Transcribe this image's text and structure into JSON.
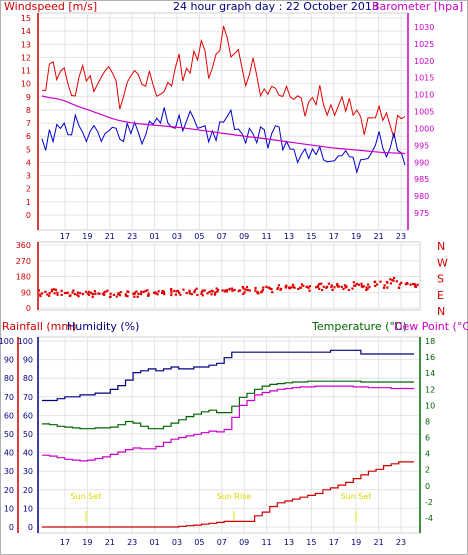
{
  "chart_data": [
    {
      "type": "line",
      "title": "24 hour graph day : 22 October 2013",
      "ylabel": "Windspeed [m/s]",
      "y2label": "Barometer [hpa]",
      "ylim": [
        0,
        15
      ],
      "y2lim": [
        975,
        1030
      ],
      "yticks": [
        0,
        1,
        2,
        3,
        4,
        5,
        6,
        7,
        8,
        9,
        10,
        11,
        12,
        13,
        14,
        15
      ],
      "y2ticks": [
        975,
        980,
        985,
        990,
        995,
        1000,
        1005,
        1010,
        1015,
        1020,
        1025,
        1030
      ],
      "xticks": [
        "17",
        "19",
        "21",
        "23",
        "01",
        "03",
        "05",
        "07",
        "09",
        "11",
        "13",
        "15",
        "17",
        "19",
        "21",
        "23"
      ],
      "grid": true,
      "colors": {
        "gust": "#e00000",
        "speed": "#0000cc",
        "barometer": "#cc00cc",
        "axis_left": "#cc0000",
        "axis_right": "#cc00cc",
        "title": "#000080"
      },
      "series": [
        {
          "key": "gust",
          "values": [
            9.5,
            11.5,
            10.3,
            11.2,
            9.1,
            10.5,
            10.2,
            9.4,
            10.5,
            11.3,
            10.2,
            9.0,
            10.6,
            10.7,
            9.8,
            9.9,
            9.2,
            10.1,
            11.2,
            10.2,
            10.8,
            11.8,
            12.5,
            11.2,
            12.5,
            13.5,
            12.3,
            11.2,
            10.7,
            10.6,
            9.6,
            9.8,
            9.1,
            9.8,
            8.8,
            8.9,
            8.6,
            8.4,
            8.4,
            8.4,
            8.3,
            7.9,
            7.6,
            7.5,
            7.4,
            7.4,
            7.2,
            6.8,
            7.6,
            7.5
          ]
        },
        {
          "key": "speed",
          "values": [
            5.8,
            6.5,
            6.9,
            7.0,
            6.1,
            6.8,
            5.6,
            6.8,
            5.6,
            6.4,
            6.6,
            5.6,
            6.2,
            6.3,
            6.1,
            6.9,
            7.0,
            7.0,
            6.6,
            6.4,
            7.9,
            6.6,
            6.8,
            6.4,
            7.1,
            7.5,
            6.5,
            6.2,
            6.6,
            5.5,
            6.5,
            6.2,
            6.7,
            5.6,
            5.0,
            4.6,
            4.3,
            4.6,
            4.2,
            4.1,
            4.5,
            4.9,
            4.4,
            4.2,
            4.3,
            5.3,
            5.1,
            5.1,
            4.9,
            3.8
          ]
        },
        {
          "key": "barometer",
          "values": [
            1009.6,
            1009.1,
            1008.8,
            1008.2,
            1007.3,
            1006.4,
            1005.7,
            1004.9,
            1004.1,
            1003.3,
            1002.6,
            1002.1,
            1001.7,
            1001.4,
            1001.2,
            1001.0,
            1000.8,
            1000.6,
            1000.4,
            1000.2,
            999.9,
            999.6,
            999.3,
            999.0,
            998.7,
            998.4,
            998.1,
            997.8,
            997.5,
            997.3,
            997.0,
            996.7,
            996.4,
            996.1,
            995.8,
            995.5,
            995.2,
            994.9,
            994.6,
            994.3,
            994.1,
            993.9,
            993.7,
            993.5,
            993.3,
            993.1,
            992.9,
            992.8,
            992.7,
            992.6
          ]
        }
      ]
    },
    {
      "type": "scatter",
      "ylabel": "N W S E N",
      "direction_labels": [
        "N",
        "W",
        "S",
        "E",
        "N"
      ],
      "ylim": [
        0,
        360
      ],
      "yticks": [
        0,
        90,
        180,
        270,
        360
      ],
      "xticks": [
        "17",
        "19",
        "21",
        "23",
        "01",
        "03",
        "05",
        "07",
        "09",
        "11",
        "13",
        "15",
        "17",
        "19",
        "21",
        "23"
      ],
      "grid": true,
      "colors": {
        "points": "#e00000",
        "axis_left": "#cc0000",
        "axis_right": "#cc0000"
      },
      "values": [
        84,
        86,
        88,
        86,
        89,
        85,
        83,
        82,
        80,
        82,
        80,
        79,
        81,
        80,
        82,
        84,
        87,
        89,
        88,
        86,
        91,
        93,
        92,
        94,
        96,
        99,
        101,
        103,
        100,
        104,
        110,
        115,
        118,
        121,
        117,
        116,
        119,
        122,
        120,
        124,
        123,
        128,
        127,
        120,
        135,
        130,
        160,
        135,
        140,
        125
      ]
    },
    {
      "type": "line",
      "ylabel": "Rainfall (mm)",
      "y1label": "Humidity (%)",
      "y2label": "Temperature (°C)",
      "y3label": "Dew Point (°C)",
      "ylim": [
        0,
        100
      ],
      "y2lim": [
        -4,
        18
      ],
      "yticks": [
        0,
        10,
        20,
        30,
        40,
        50,
        60,
        70,
        80,
        90,
        100
      ],
      "y2ticks": [
        -4,
        -2,
        0,
        2,
        4,
        6,
        8,
        10,
        12,
        14,
        16,
        18
      ],
      "xticks": [
        "17",
        "19",
        "21",
        "23",
        "01",
        "03",
        "05",
        "07",
        "09",
        "11",
        "13",
        "15",
        "17",
        "19",
        "21",
        "23"
      ],
      "annotations": [
        "Sun Set",
        "Sun Rise",
        "Sun Set"
      ],
      "grid": true,
      "colors": {
        "rainfall": "#cc0000",
        "humidity": "#000080",
        "temperature": "#006600",
        "dewpoint": "#cc00cc",
        "sun": "#e6e600"
      },
      "series": [
        {
          "key": "rainfall",
          "values": [
            0,
            0,
            0,
            0,
            0,
            0,
            0,
            0,
            0,
            0,
            0,
            0,
            0,
            0,
            0,
            0,
            0,
            0,
            0.4,
            0.7,
            1.0,
            1.5,
            2.0,
            2.5,
            3.0,
            3.0,
            3.0,
            3.0,
            6.0,
            8.0,
            11.0,
            13.0,
            14.0,
            15.0,
            16.0,
            17.0,
            18.0,
            20.0,
            21.0,
            22.5,
            24.0,
            26.0,
            28.0,
            30.0,
            31.0,
            33.0,
            34.0,
            35.0,
            35.0,
            35.0
          ]
        },
        {
          "key": "humidity",
          "values": [
            68,
            68,
            69,
            70,
            70,
            71,
            71,
            72,
            72,
            74,
            76,
            79,
            83,
            84,
            85,
            84,
            85,
            86,
            85,
            85,
            86,
            86,
            87,
            88,
            91,
            94,
            94,
            94,
            94,
            94,
            94,
            94,
            94,
            94,
            94,
            94,
            94,
            94,
            95,
            95,
            95,
            95,
            93,
            93,
            93,
            93,
            93,
            93,
            93,
            93
          ]
        },
        {
          "key": "temperature",
          "values": [
            7.7,
            7.6,
            7.4,
            7.3,
            7.2,
            7.1,
            7.1,
            7.2,
            7.2,
            7.3,
            7.6,
            8.0,
            7.8,
            7.4,
            7.1,
            7.1,
            7.4,
            7.8,
            8.2,
            8.6,
            8.9,
            9.2,
            9.4,
            9.1,
            9.1,
            9.9,
            11.0,
            11.5,
            12.0,
            12.4,
            12.6,
            12.7,
            12.8,
            12.9,
            12.9,
            13.0,
            13.0,
            13.0,
            13.0,
            13.0,
            13.0,
            13.0,
            12.9,
            12.9,
            12.9,
            12.9,
            12.9,
            12.9,
            12.9,
            12.9
          ]
        },
        {
          "key": "dewpoint",
          "values": [
            3.8,
            3.7,
            3.5,
            3.3,
            3.2,
            3.1,
            3.2,
            3.4,
            3.6,
            3.9,
            4.2,
            4.5,
            4.7,
            4.6,
            4.6,
            4.9,
            5.4,
            5.8,
            6.0,
            6.2,
            6.4,
            6.6,
            6.8,
            6.7,
            7.0,
            8.5,
            10.0,
            10.6,
            11.3,
            11.6,
            11.8,
            12.0,
            12.1,
            12.2,
            12.3,
            12.3,
            12.4,
            12.4,
            12.4,
            12.4,
            12.4,
            12.3,
            12.3,
            12.2,
            12.2,
            12.2,
            12.1,
            12.1,
            12.1,
            12.1
          ]
        }
      ]
    }
  ]
}
